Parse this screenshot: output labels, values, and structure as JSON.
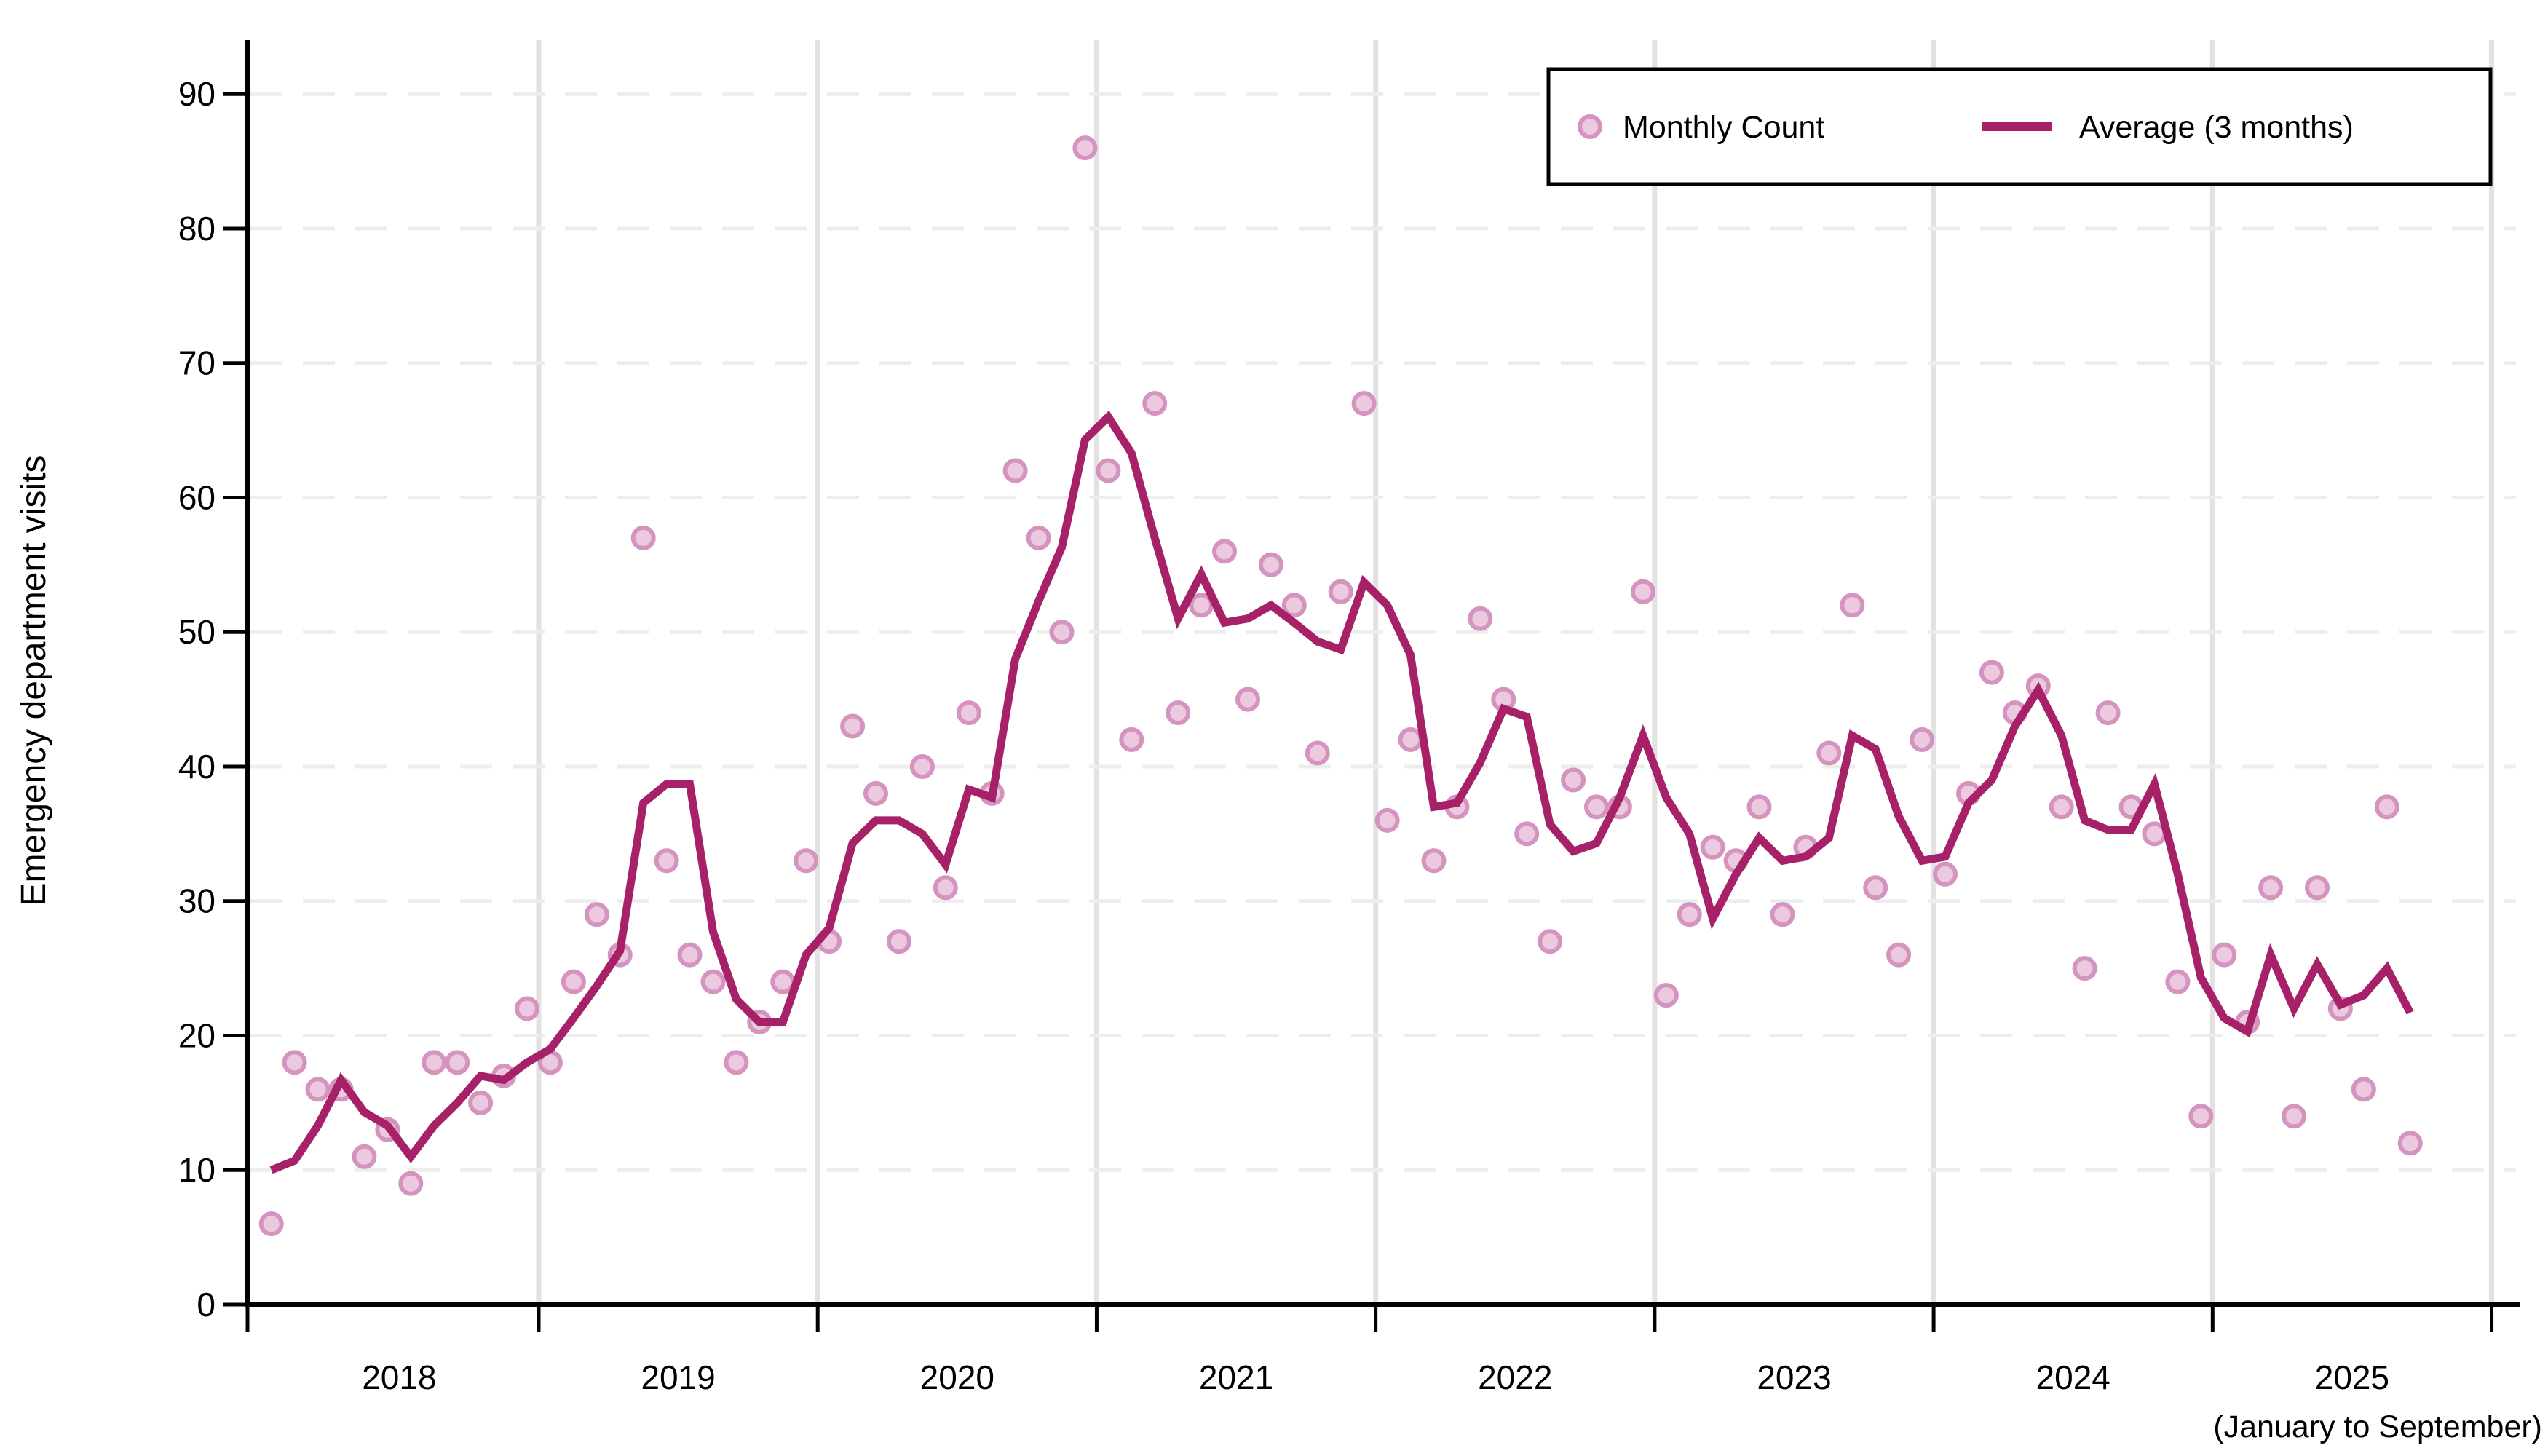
{
  "colors": {
    "line": "#a62168",
    "dot_fill": "#ecc9de",
    "dot_stroke": "#d494bf",
    "axis": "#000000",
    "grid_horizontal": "#ededed",
    "grid_vertical": "#e2e2e2",
    "legend_border": "#000000",
    "background": "#ffffff"
  },
  "legend": {
    "monthly_label": "Monthly Count",
    "average_label": "Average (3 months)"
  },
  "chart_data": {
    "type": "scatter",
    "title": "",
    "xlabel": "",
    "ylabel": "Emergency department visits",
    "x_note": "(January to September)",
    "ylim": [
      0,
      90
    ],
    "yticks": [
      0,
      10,
      20,
      30,
      40,
      50,
      60,
      70,
      80,
      90
    ],
    "years": [
      2018,
      2019,
      2020,
      2021,
      2022,
      2023,
      2024,
      2025
    ],
    "grid": true,
    "legend_position": "top-right",
    "series": [
      {
        "name": "Monthly Count",
        "type": "scatter",
        "by_year": {
          "2018": [
            6,
            18,
            16,
            16,
            11,
            13,
            9,
            18,
            18,
            15,
            17,
            22
          ],
          "2019": [
            18,
            24,
            29,
            26,
            57,
            33,
            26,
            24,
            18,
            21,
            24,
            33
          ],
          "2020": [
            27,
            43,
            38,
            27,
            40,
            31,
            44,
            38,
            62,
            57,
            50,
            86
          ],
          "2021": [
            62,
            42,
            67,
            44,
            52,
            56,
            45,
            55,
            52,
            41,
            53,
            67
          ],
          "2022": [
            36,
            42,
            33,
            37,
            51,
            45,
            35,
            27,
            39,
            37,
            37,
            53
          ],
          "2023": [
            23,
            29,
            34,
            33,
            37,
            29,
            34,
            41,
            52,
            31,
            26,
            42
          ],
          "2024": [
            32,
            38,
            47,
            44,
            46,
            37,
            25,
            44,
            37,
            35,
            24,
            14
          ],
          "2025": [
            26,
            21,
            31,
            14,
            31,
            22,
            16,
            37,
            12
          ]
        }
      },
      {
        "name": "Average (3 months)",
        "type": "line",
        "values": [
          10.0,
          10.7,
          13.3,
          16.7,
          14.3,
          13.3,
          11.0,
          13.3,
          15.0,
          17.0,
          16.7,
          18.0,
          19.0,
          21.3,
          23.7,
          26.3,
          37.3,
          38.7,
          38.7,
          27.7,
          22.7,
          21.0,
          21.0,
          26.0,
          28.0,
          34.3,
          36.0,
          36.0,
          35.0,
          32.7,
          38.3,
          37.7,
          48.0,
          52.3,
          56.3,
          64.3,
          66.0,
          63.3,
          57.0,
          51.0,
          54.3,
          50.7,
          51.0,
          52.0,
          50.7,
          49.3,
          48.7,
          53.7,
          52.0,
          48.3,
          37.0,
          37.3,
          40.3,
          44.3,
          43.7,
          35.7,
          33.7,
          34.3,
          37.7,
          42.3,
          37.7,
          35.0,
          28.7,
          32.0,
          34.7,
          33.0,
          33.3,
          34.7,
          42.3,
          41.3,
          36.3,
          33.0,
          33.3,
          37.3,
          39.0,
          43.0,
          45.7,
          42.3,
          36.0,
          35.3,
          35.3,
          38.7,
          32.0,
          24.3,
          21.3,
          20.3,
          26.0,
          22.0,
          25.3,
          22.3,
          23.0,
          25.0,
          21.7
        ]
      }
    ]
  }
}
